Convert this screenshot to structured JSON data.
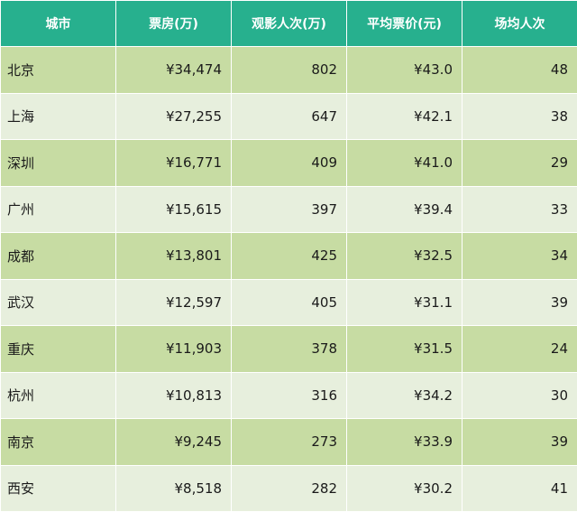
{
  "table": {
    "headers": [
      "城市",
      "票房(万)",
      "观影人次(万)",
      "平均票价(元)",
      "场均人次"
    ],
    "rows": [
      {
        "city": "北京",
        "box_office": "¥34,474",
        "admissions": "802",
        "avg_price": "¥43.0",
        "per_screening": "48"
      },
      {
        "city": "上海",
        "box_office": "¥27,255",
        "admissions": "647",
        "avg_price": "¥42.1",
        "per_screening": "38"
      },
      {
        "city": "深圳",
        "box_office": "¥16,771",
        "admissions": "409",
        "avg_price": "¥41.0",
        "per_screening": "29"
      },
      {
        "city": "广州",
        "box_office": "¥15,615",
        "admissions": "397",
        "avg_price": "¥39.4",
        "per_screening": "33"
      },
      {
        "city": "成都",
        "box_office": "¥13,801",
        "admissions": "425",
        "avg_price": "¥32.5",
        "per_screening": "34"
      },
      {
        "city": "武汉",
        "box_office": "¥12,597",
        "admissions": "405",
        "avg_price": "¥31.1",
        "per_screening": "39"
      },
      {
        "city": "重庆",
        "box_office": "¥11,903",
        "admissions": "378",
        "avg_price": "¥31.5",
        "per_screening": "24"
      },
      {
        "city": "杭州",
        "box_office": "¥10,813",
        "admissions": "316",
        "avg_price": "¥34.2",
        "per_screening": "30"
      },
      {
        "city": "南京",
        "box_office": "¥9,245",
        "admissions": "273",
        "avg_price": "¥33.9",
        "per_screening": "39"
      },
      {
        "city": "西安",
        "box_office": "¥8,518",
        "admissions": "282",
        "avg_price": "¥30.2",
        "per_screening": "41"
      }
    ]
  },
  "colors": {
    "header_bg": "#27b08e",
    "row_odd_bg": "#c7dca3",
    "row_even_bg": "#e7efdd"
  }
}
